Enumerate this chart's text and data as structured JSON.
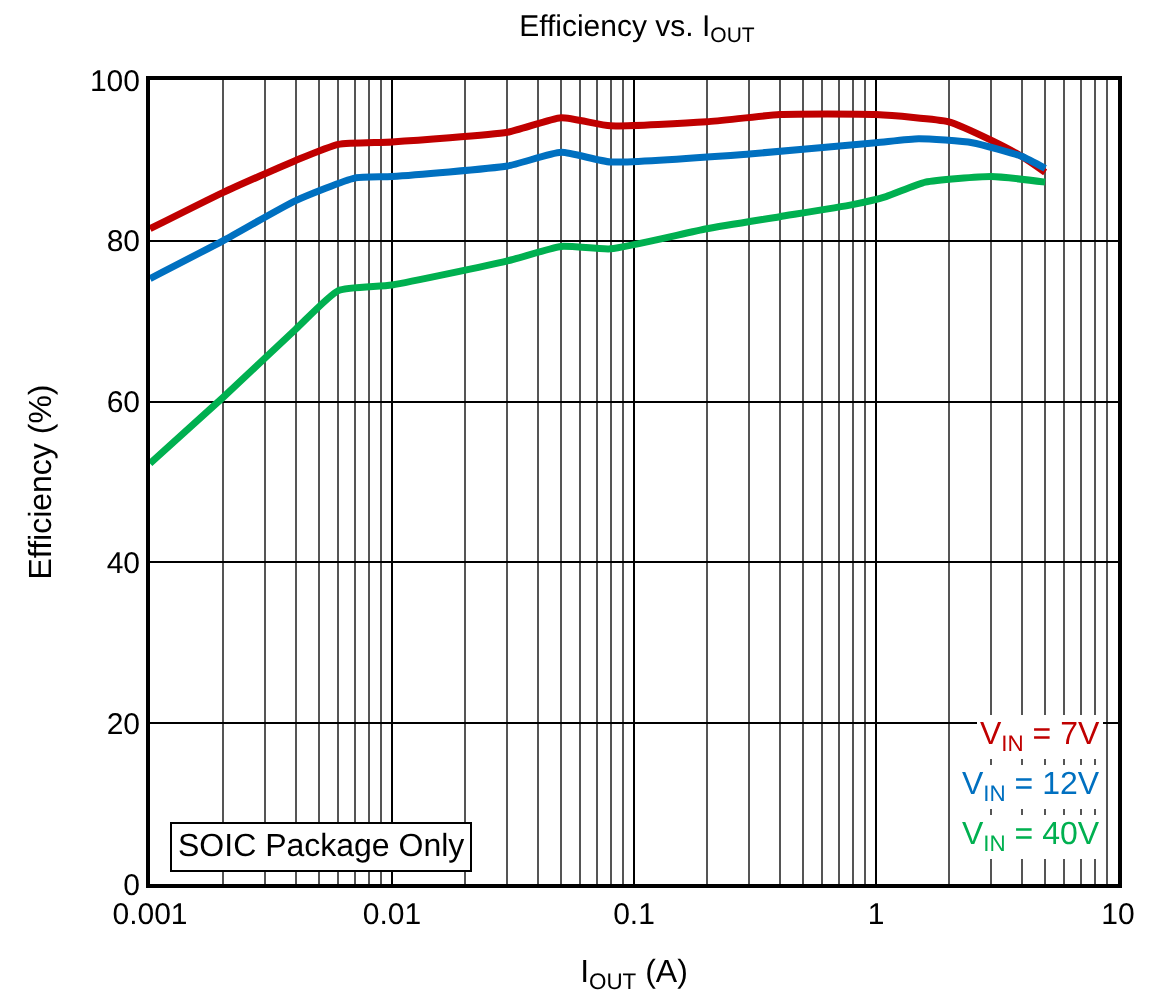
{
  "chart_data": {
    "type": "line",
    "title": "Efficiency vs. I$_{OUT}$",
    "xlabel": "I$_{OUT}$ (A)",
    "ylabel": "Efficiency (%)",
    "log": "x",
    "grid": true,
    "legend": "bottom right",
    "marker": "none",
    "line_style": "solid",
    "xlim": [
      0.001,
      10
    ],
    "xticks": [
      0.001,
      0.01,
      0.1,
      1,
      10
    ],
    "ylim": [
      0,
      100
    ],
    "yticks": [
      0,
      20,
      40,
      60,
      80,
      100
    ],
    "annotations": [
      "SOIC Package Only"
    ],
    "series": [
      {
        "name": "V$_{IN}$ = 7V",
        "color": "#c00000",
        "x": [
          0.001,
          0.002,
          0.004,
          0.006,
          0.01,
          0.03,
          0.05,
          0.08,
          0.2,
          0.4,
          1,
          2,
          3,
          4,
          5
        ],
        "values": [
          81.5,
          86,
          90,
          92,
          92.3,
          93.5,
          95.3,
          94.3,
          94.8,
          95.7,
          95.7,
          94.8,
          92.5,
          90.5,
          88.5
        ]
      },
      {
        "name": "V$_{IN}$ = 12V",
        "color": "#0070c0",
        "x": [
          0.001,
          0.002,
          0.004,
          0.007,
          0.01,
          0.03,
          0.05,
          0.08,
          0.3,
          1,
          1.5,
          2.5,
          4,
          5
        ],
        "values": [
          75.3,
          80,
          85,
          87.8,
          88,
          89.3,
          91,
          89.8,
          90.8,
          92.2,
          92.7,
          92.2,
          90.5,
          89
        ]
      },
      {
        "name": "V$_{IN}$ = 40V",
        "color": "#00b050",
        "x": [
          0.001,
          0.002,
          0.004,
          0.006,
          0.01,
          0.03,
          0.05,
          0.08,
          0.2,
          0.4,
          0.8,
          1.1,
          1.6,
          3,
          5
        ],
        "values": [
          52.3,
          60.5,
          69,
          73.8,
          74.5,
          77.5,
          79.3,
          79,
          81.5,
          83,
          84.5,
          85.5,
          87.3,
          88,
          87.3
        ]
      }
    ]
  }
}
